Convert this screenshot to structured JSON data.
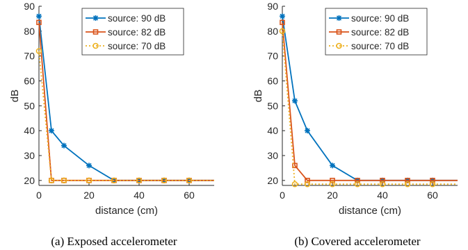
{
  "figure": {
    "captions": [
      "(a) Exposed accelerometer",
      "(b) Covered accelerometer"
    ]
  },
  "chart_data": [
    {
      "type": "line",
      "xlabel": "distance (cm)",
      "ylabel": "dB",
      "xlim": [
        0,
        70
      ],
      "ylim": [
        18,
        90
      ],
      "xticks": [
        0,
        20,
        40,
        60
      ],
      "yticks": [
        20,
        30,
        40,
        50,
        60,
        70,
        80,
        90
      ],
      "grid": false,
      "legend_position": "top-right",
      "x": [
        0,
        5,
        10,
        20,
        30,
        40,
        50,
        60,
        70
      ],
      "series": [
        {
          "name": "source: 90 dB",
          "color": "#0072BD",
          "marker": "star",
          "dash": "solid",
          "values": [
            86,
            40,
            34,
            26,
            20,
            20,
            20,
            20,
            20
          ]
        },
        {
          "name": "source: 82 dB",
          "color": "#D95319",
          "marker": "square",
          "dash": "solid",
          "values": [
            83.5,
            20,
            20,
            20,
            20,
            20,
            20,
            20,
            20
          ]
        },
        {
          "name": "source: 70 dB",
          "color": "#EDB120",
          "marker": "circle",
          "dash": "dotted",
          "values": [
            72,
            20,
            20,
            20,
            20,
            20,
            20,
            20,
            20
          ]
        }
      ]
    },
    {
      "type": "line",
      "xlabel": "distance (cm)",
      "ylabel": "dB",
      "xlim": [
        0,
        70
      ],
      "ylim": [
        18,
        90
      ],
      "xticks": [
        0,
        20,
        40,
        60
      ],
      "yticks": [
        20,
        30,
        40,
        50,
        60,
        70,
        80,
        90
      ],
      "grid": false,
      "legend_position": "top-right",
      "x": [
        0,
        5,
        10,
        20,
        30,
        40,
        50,
        60,
        70
      ],
      "series": [
        {
          "name": "source: 90 dB",
          "color": "#0072BD",
          "marker": "star",
          "dash": "solid",
          "values": [
            86,
            52,
            40,
            26,
            20,
            20,
            20,
            20,
            20
          ]
        },
        {
          "name": "source: 82 dB",
          "color": "#D95319",
          "marker": "square",
          "dash": "solid",
          "values": [
            83.5,
            26,
            20,
            20,
            20,
            20,
            20,
            20,
            20
          ]
        },
        {
          "name": "source: 70 dB",
          "color": "#EDB120",
          "marker": "circle",
          "dash": "dotted",
          "values": [
            80,
            18.5,
            18.5,
            18.5,
            18.5,
            18.5,
            18.5,
            18.5,
            18.5
          ]
        }
      ]
    }
  ]
}
